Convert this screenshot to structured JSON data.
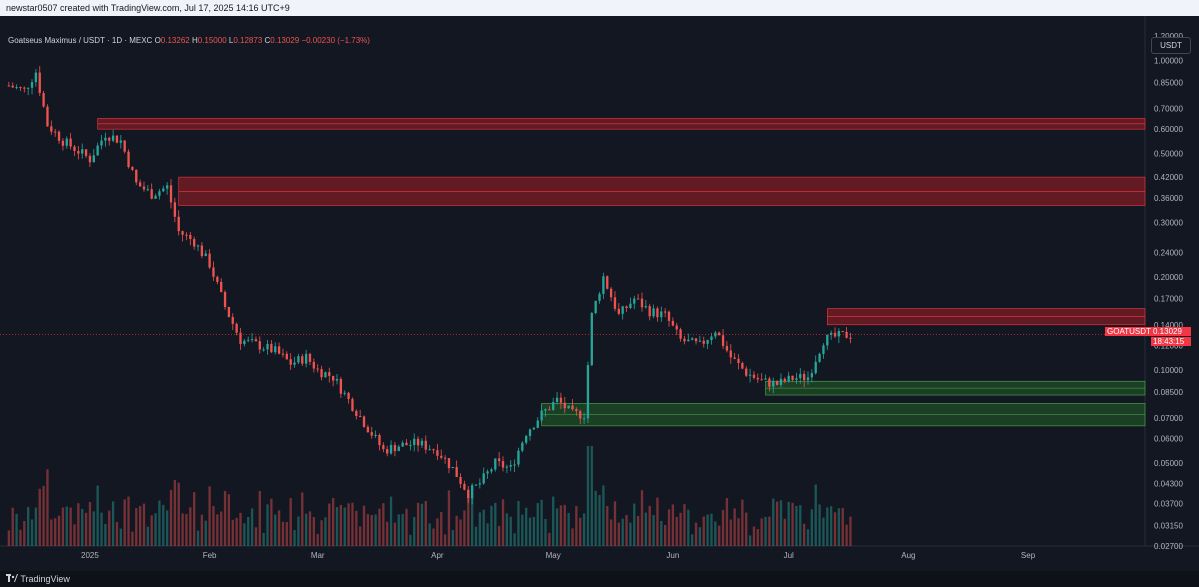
{
  "header": {
    "created_by": "newstar0507 created with TradingView.com, Jul 17, 2025 14:16 UTC+9"
  },
  "legend": {
    "symbol": "Goatseus Maximus / USDT · 1D · MEXC",
    "o_label": "O",
    "o_value": "0.13262",
    "h_label": "H",
    "h_value": "0.15000",
    "l_label": "L",
    "l_value": "0.12873",
    "c_label": "C",
    "c_value": "0.13029",
    "change": "−0.00230 (−1.73%)"
  },
  "price_axis": {
    "unit_button": "USDT"
  },
  "last_price": {
    "ticker": "GOATUSDT",
    "value": "0.13029",
    "countdown": "18:43:15"
  },
  "footer": {
    "brand": "TradingView"
  },
  "colors": {
    "up": "#26a69a",
    "down": "#ef5350",
    "resistance_zone": "#7f1d24",
    "support_zone": "#1f4d26",
    "background": "#131722"
  },
  "chart_data": {
    "type": "candlestick",
    "scale": "log",
    "ylim": [
      0.027,
      1.2
    ],
    "y_ticks": [
      "1.20000",
      "1.00000",
      "0.85000",
      "0.70000",
      "0.60000",
      "0.50000",
      "0.42000",
      "0.36000",
      "0.30000",
      "0.24000",
      "0.20000",
      "0.17000",
      "0.14000",
      "0.12000",
      "0.10000",
      "0.08500",
      "0.07000",
      "0.06000",
      "0.05000",
      "0.04300",
      "0.03700",
      "0.03150",
      "0.02700"
    ],
    "x_ticks": [
      "2025",
      "Feb",
      "Mar",
      "Apr",
      "May",
      "Jun",
      "Jul",
      "Aug",
      "Sep"
    ],
    "x_tick_dates": [
      "2025-01-01",
      "2025-02-01",
      "2025-03-01",
      "2025-04-01",
      "2025-05-01",
      "2025-06-01",
      "2025-07-01",
      "2025-08-01",
      "2025-09-01"
    ],
    "x_range": [
      "2024-12-10",
      "2025-09-30"
    ],
    "close_series": [
      {
        "date": "2024-12-11",
        "close": 0.83
      },
      {
        "date": "2024-12-15",
        "close": 0.8
      },
      {
        "date": "2024-12-18",
        "close": 0.92
      },
      {
        "date": "2024-12-21",
        "close": 0.62
      },
      {
        "date": "2024-12-25",
        "close": 0.55
      },
      {
        "date": "2024-12-28",
        "close": 0.52
      },
      {
        "date": "2025-01-01",
        "close": 0.48
      },
      {
        "date": "2025-01-05",
        "close": 0.58
      },
      {
        "date": "2025-01-09",
        "close": 0.55
      },
      {
        "date": "2025-01-13",
        "close": 0.4
      },
      {
        "date": "2025-01-17",
        "close": 0.37
      },
      {
        "date": "2025-01-21",
        "close": 0.39
      },
      {
        "date": "2025-01-24",
        "close": 0.28
      },
      {
        "date": "2025-01-28",
        "close": 0.26
      },
      {
        "date": "2025-02-01",
        "close": 0.22
      },
      {
        "date": "2025-02-05",
        "close": 0.16
      },
      {
        "date": "2025-02-09",
        "close": 0.125
      },
      {
        "date": "2025-02-14",
        "close": 0.12
      },
      {
        "date": "2025-02-18",
        "close": 0.115
      },
      {
        "date": "2025-02-22",
        "close": 0.105
      },
      {
        "date": "2025-02-26",
        "close": 0.11
      },
      {
        "date": "2025-03-01",
        "close": 0.1
      },
      {
        "date": "2025-03-05",
        "close": 0.095
      },
      {
        "date": "2025-03-09",
        "close": 0.08
      },
      {
        "date": "2025-03-14",
        "close": 0.065
      },
      {
        "date": "2025-03-18",
        "close": 0.055
      },
      {
        "date": "2025-03-22",
        "close": 0.057
      },
      {
        "date": "2025-03-27",
        "close": 0.058
      },
      {
        "date": "2025-04-01",
        "close": 0.055
      },
      {
        "date": "2025-04-05",
        "close": 0.048
      },
      {
        "date": "2025-04-09",
        "close": 0.04
      },
      {
        "date": "2025-04-12",
        "close": 0.043
      },
      {
        "date": "2025-04-16",
        "close": 0.05
      },
      {
        "date": "2025-04-20",
        "close": 0.048
      },
      {
        "date": "2025-04-24",
        "close": 0.063
      },
      {
        "date": "2025-04-28",
        "close": 0.072
      },
      {
        "date": "2025-05-02",
        "close": 0.08
      },
      {
        "date": "2025-05-06",
        "close": 0.072
      },
      {
        "date": "2025-05-09",
        "close": 0.072
      },
      {
        "date": "2025-05-11",
        "close": 0.15
      },
      {
        "date": "2025-05-14",
        "close": 0.2
      },
      {
        "date": "2025-05-18",
        "close": 0.15
      },
      {
        "date": "2025-05-22",
        "close": 0.17
      },
      {
        "date": "2025-05-26",
        "close": 0.155
      },
      {
        "date": "2025-05-30",
        "close": 0.15
      },
      {
        "date": "2025-06-03",
        "close": 0.125
      },
      {
        "date": "2025-06-08",
        "close": 0.12
      },
      {
        "date": "2025-06-12",
        "close": 0.135
      },
      {
        "date": "2025-06-16",
        "close": 0.11
      },
      {
        "date": "2025-06-20",
        "close": 0.098
      },
      {
        "date": "2025-06-24",
        "close": 0.092
      },
      {
        "date": "2025-06-28",
        "close": 0.09
      },
      {
        "date": "2025-07-02",
        "close": 0.094
      },
      {
        "date": "2025-07-06",
        "close": 0.095
      },
      {
        "date": "2025-07-10",
        "close": 0.125
      },
      {
        "date": "2025-07-13",
        "close": 0.128
      },
      {
        "date": "2025-07-17",
        "close": 0.13029
      }
    ],
    "zones": [
      {
        "kind": "resistance",
        "low": 0.6,
        "high": 0.65,
        "start": "2025-01-03"
      },
      {
        "kind": "resistance",
        "low": 0.34,
        "high": 0.42,
        "start": "2025-01-24"
      },
      {
        "kind": "resistance",
        "low": 0.14,
        "high": 0.158,
        "start": "2025-07-11"
      },
      {
        "kind": "support",
        "low": 0.083,
        "high": 0.092,
        "start": "2025-06-25"
      },
      {
        "kind": "support",
        "low": 0.066,
        "high": 0.078,
        "start": "2025-04-28"
      }
    ]
  }
}
